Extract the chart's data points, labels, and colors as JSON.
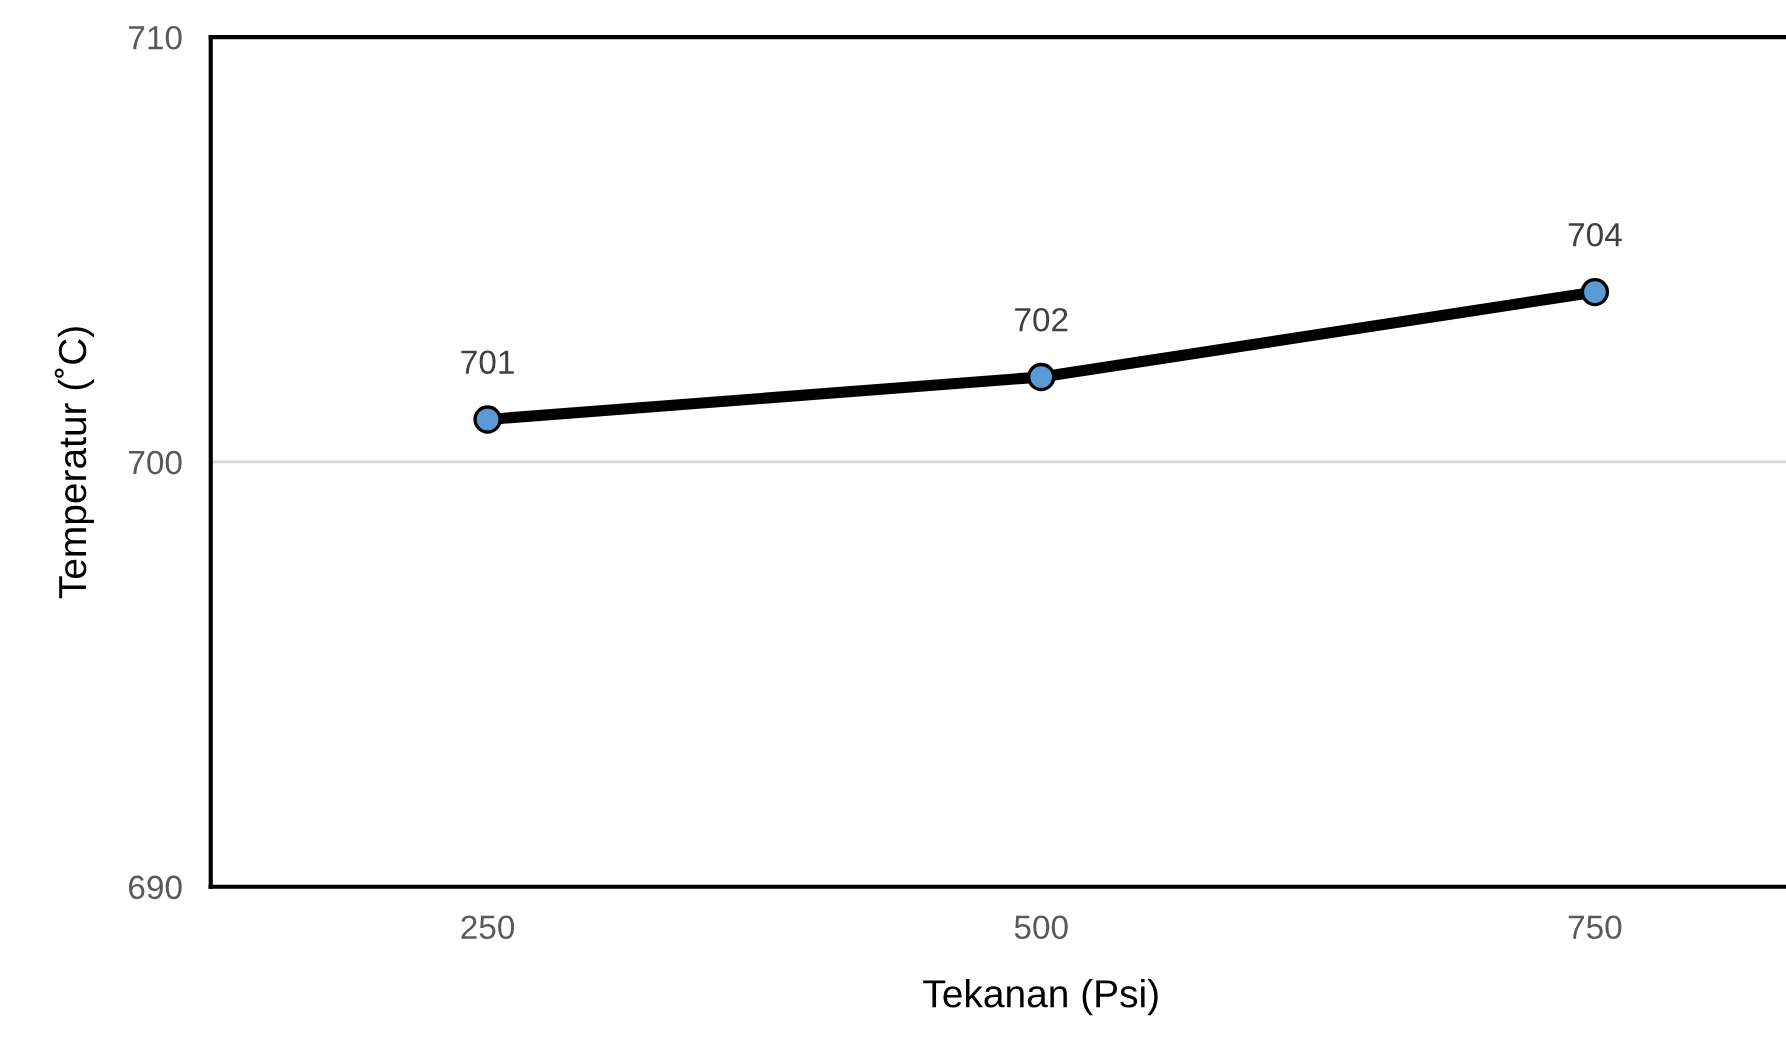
{
  "chart_data": {
    "type": "line",
    "xlabel": "Tekanan (Psi)",
    "ylabel": "Temperatur (˚C)",
    "categories": [
      "250",
      "500",
      "750"
    ],
    "series": [
      {
        "color": "#000000",
        "values": [
          701,
          702,
          704
        ]
      }
    ],
    "ylim": [
      690,
      710
    ],
    "yticks": [
      690,
      700,
      710
    ],
    "grid": "y",
    "data_labels": true,
    "marker": "circle",
    "line_style": "solid"
  }
}
